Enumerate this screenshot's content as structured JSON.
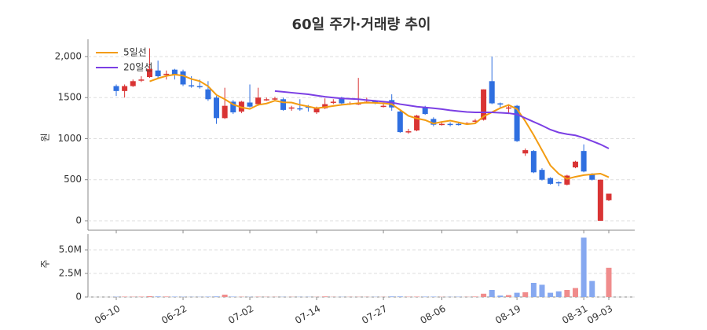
{
  "chart_data": [
    {
      "type": "candlestick",
      "title": "60일 주가·거래량 추이",
      "ylabel": "원",
      "categories": [
        "06-10",
        null,
        null,
        null,
        null,
        null,
        null,
        null,
        "06-22",
        null,
        null,
        null,
        null,
        null,
        null,
        null,
        "07-02",
        null,
        null,
        null,
        null,
        null,
        null,
        null,
        "07-14",
        null,
        null,
        null,
        null,
        null,
        null,
        null,
        "07-27",
        null,
        null,
        null,
        null,
        null,
        null,
        "08-06",
        null,
        null,
        null,
        null,
        null,
        null,
        null,
        null,
        "08-19",
        null,
        null,
        null,
        null,
        null,
        null,
        null,
        "08-31",
        null,
        null,
        "09-03"
      ],
      "open": [
        1640,
        1580,
        1640,
        1720,
        1750,
        1830,
        1790,
        1840,
        1820,
        1650,
        1640,
        1600,
        1500,
        1250,
        1450,
        1330,
        1440,
        1420,
        1480,
        1480,
        1480,
        1370,
        1370,
        1390,
        1320,
        1370,
        1450,
        1500,
        1430,
        1420,
        1440,
        1460,
        1400,
        1470,
        1330,
        1080,
        1100,
        1380,
        1240,
        1180,
        1180,
        1180,
        1180,
        1220,
        1230,
        1700,
        1430,
        1380,
        1400,
        820,
        850,
        620,
        520,
        470,
        440,
        650,
        850,
        560,
        0,
        250
      ],
      "high": [
        1660,
        1660,
        1720,
        1760,
        2100,
        1950,
        1830,
        1850,
        1840,
        1760,
        1720,
        1700,
        1520,
        1620,
        1470,
        1460,
        1660,
        1620,
        1500,
        1510,
        1500,
        1400,
        1480,
        1410,
        1390,
        1490,
        1480,
        1510,
        1450,
        1740,
        1500,
        1470,
        1430,
        1540,
        1340,
        1120,
        1290,
        1400,
        1260,
        1200,
        1200,
        1200,
        1200,
        1240,
        1600,
        2000,
        1440,
        1420,
        1410,
        880,
        860,
        640,
        530,
        480,
        560,
        730,
        930,
        580,
        500,
        330
      ],
      "low": [
        1520,
        1500,
        1630,
        1690,
        1740,
        1740,
        1720,
        1720,
        1640,
        1620,
        1610,
        1460,
        1180,
        1240,
        1300,
        1310,
        1380,
        1400,
        1460,
        1470,
        1340,
        1340,
        1340,
        1330,
        1300,
        1360,
        1420,
        1420,
        1410,
        1410,
        1430,
        1420,
        1380,
        1340,
        1070,
        1060,
        1090,
        1290,
        1150,
        1160,
        1150,
        1160,
        1170,
        1200,
        1220,
        1420,
        1380,
        1300,
        960,
        790,
        580,
        490,
        440,
        420,
        430,
        640,
        590,
        490,
        0,
        240
      ],
      "close": [
        1580,
        1640,
        1700,
        1720,
        1850,
        1760,
        1790,
        1780,
        1660,
        1640,
        1630,
        1480,
        1250,
        1400,
        1320,
        1450,
        1390,
        1500,
        1480,
        1490,
        1350,
        1380,
        1360,
        1380,
        1380,
        1420,
        1450,
        1430,
        1430,
        1430,
        1450,
        1440,
        1400,
        1380,
        1080,
        1090,
        1280,
        1300,
        1170,
        1180,
        1170,
        1170,
        1190,
        1220,
        1600,
        1430,
        1420,
        1380,
        970,
        860,
        590,
        500,
        450,
        460,
        550,
        720,
        600,
        500,
        500,
        330
      ],
      "up_color": "#d93434",
      "down_color": "#2f6fe0",
      "series": [
        {
          "name": "5일선",
          "color": "#f39c12",
          "values": [
            null,
            null,
            null,
            null,
            1698,
            1734,
            1764,
            1780,
            1768,
            1726,
            1700,
            1638,
            1532,
            1480,
            1416,
            1380,
            1362,
            1412,
            1428,
            1462,
            1442,
            1440,
            1412,
            1392,
            1370,
            1384,
            1398,
            1412,
            1422,
            1432,
            1438,
            1436,
            1430,
            1420,
            1350,
            1278,
            1246,
            1226,
            1184,
            1204,
            1220,
            1198,
            1176,
            1186,
            1270,
            1322,
            1372,
            1410,
            1360,
            1212,
            1044,
            860,
            674,
            572,
            510,
            536,
            556,
            566,
            574,
            530
          ]
        },
        {
          "name": "20일선",
          "color": "#7b3fe4",
          "values": [
            null,
            null,
            null,
            null,
            null,
            null,
            null,
            null,
            null,
            null,
            null,
            null,
            null,
            null,
            null,
            null,
            null,
            null,
            null,
            1580,
            1570,
            1560,
            1550,
            1540,
            1525,
            1510,
            1500,
            1490,
            1485,
            1480,
            1470,
            1460,
            1450,
            1440,
            1420,
            1405,
            1390,
            1380,
            1370,
            1360,
            1345,
            1335,
            1325,
            1320,
            1320,
            1320,
            1315,
            1310,
            1295,
            1250,
            1205,
            1160,
            1110,
            1075,
            1055,
            1040,
            1010,
            970,
            930,
            880
          ]
        }
      ],
      "ylim": [
        -115,
        2210
      ],
      "yticks": [
        0,
        500,
        1000,
        1500,
        {
          "value": 2000,
          "label": "2,000"
        }
      ],
      "grid": true,
      "legend": "upper left"
    },
    {
      "type": "bar",
      "ylabel": "주",
      "values": [
        30000,
        40000,
        30000,
        40000,
        80000,
        60000,
        50000,
        40000,
        30000,
        20000,
        20000,
        40000,
        60000,
        250000,
        40000,
        30000,
        20000,
        30000,
        20000,
        20000,
        20000,
        20000,
        20000,
        20000,
        20000,
        60000,
        20000,
        20000,
        20000,
        20000,
        20000,
        20000,
        20000,
        60000,
        60000,
        30000,
        40000,
        40000,
        40000,
        20000,
        20000,
        30000,
        20000,
        50000,
        350000,
        750000,
        150000,
        200000,
        450000,
        500000,
        1500000,
        1300000,
        450000,
        600000,
        750000,
        950000,
        6300000,
        1700000,
        0,
        3100000
      ],
      "up_color": "#f08c8c",
      "down_color": "#86a8f0",
      "ylim": [
        0,
        6670000
      ],
      "yticks": [
        0,
        {
          "value": 2500000,
          "label": "2.5M"
        },
        {
          "value": 5000000,
          "label": "5.0M"
        }
      ],
      "grid": true
    }
  ]
}
